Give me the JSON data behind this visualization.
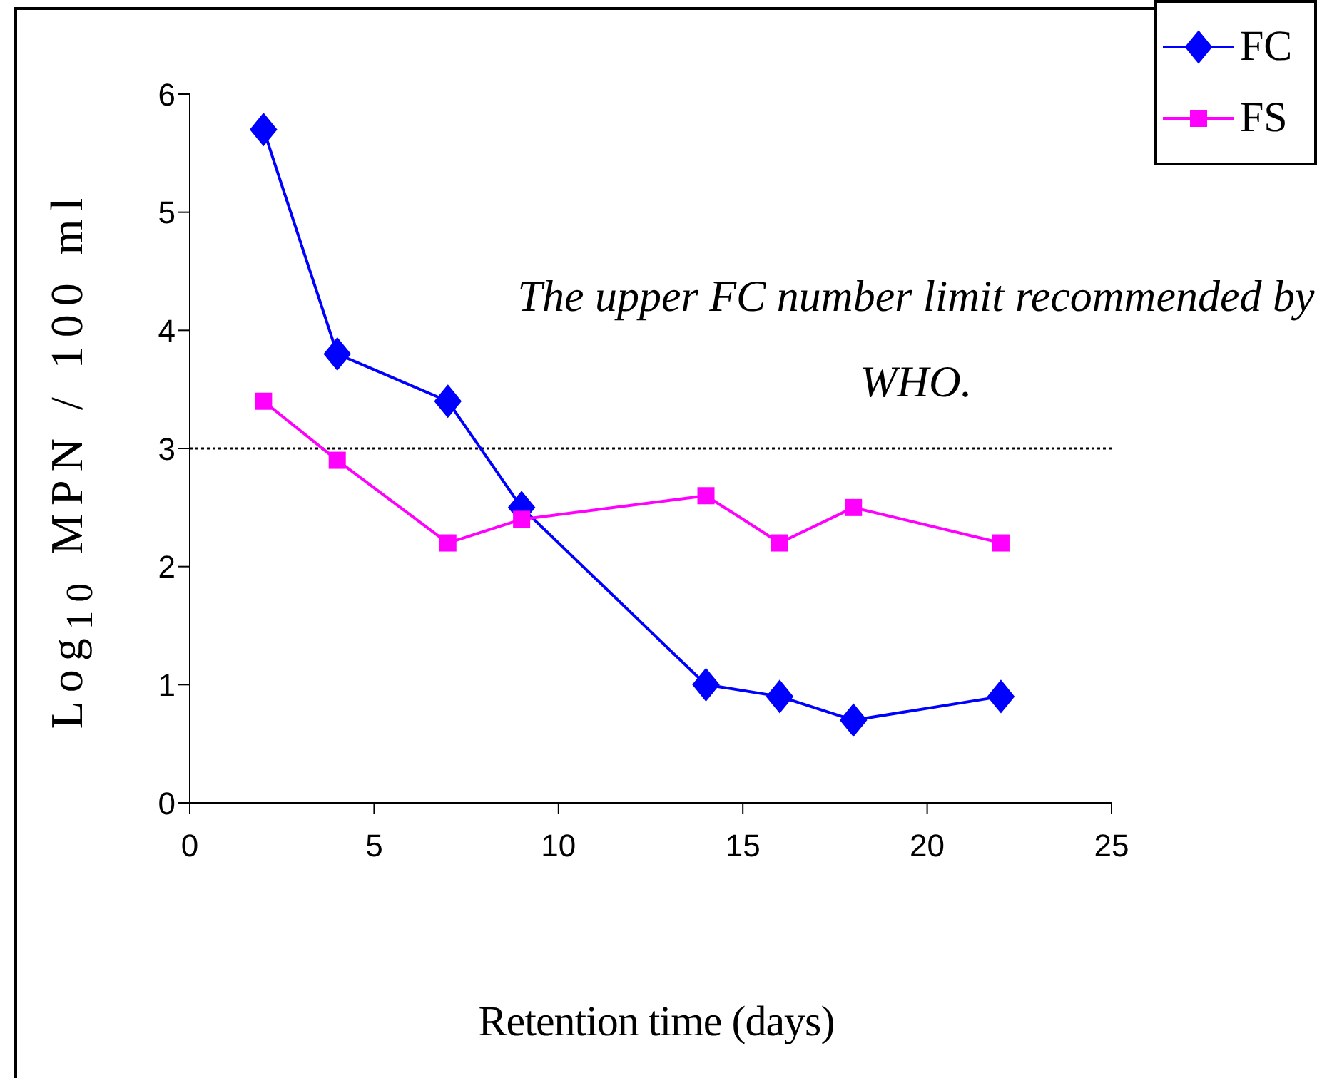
{
  "chart_data": {
    "type": "line",
    "xlabel": "Retention time (days)",
    "ylabel": "Log$_{10}$ MPN / 100 ml",
    "x": [
      2,
      4,
      7,
      9,
      14,
      16,
      18,
      22
    ],
    "series": [
      {
        "name": "FC",
        "color": "#0000ff",
        "marker": "diamond",
        "values": [
          5.7,
          3.8,
          3.4,
          2.5,
          1.0,
          0.9,
          0.7,
          0.9
        ]
      },
      {
        "name": "FS",
        "color": "#ff00ff",
        "marker": "square",
        "values": [
          3.4,
          2.9,
          2.2,
          2.4,
          2.6,
          2.2,
          2.5,
          2.2
        ]
      }
    ],
    "xlim": [
      0,
      25
    ],
    "xticks": [
      0,
      5,
      10,
      15,
      20,
      25
    ],
    "ylim": [
      0,
      6
    ],
    "yticks": [
      0,
      1,
      2,
      3,
      4,
      5,
      6
    ],
    "ref_lines": [
      {
        "axis": "y",
        "value": 3,
        "label": "The upper FC number limit recommended by WHO.",
        "color": "#000000",
        "line_style": "dotted"
      }
    ],
    "grid": false,
    "legend": "top right",
    "line_style": "solid"
  }
}
